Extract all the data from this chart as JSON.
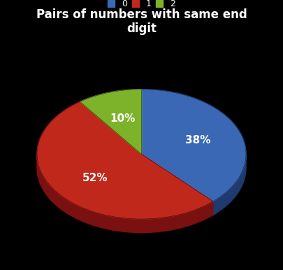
{
  "title": "Pairs of numbers with same end\ndigit",
  "slices": [
    38,
    52,
    10
  ],
  "labels": [
    "38%",
    "52%",
    "10%"
  ],
  "colors": [
    "#3a68b5",
    "#c0281c",
    "#7db32a"
  ],
  "dark_colors": [
    "#1e3a6e",
    "#7a1010",
    "#4a6e10"
  ],
  "legend_labels": [
    "0",
    "1",
    "2"
  ],
  "background_color": "#000000",
  "text_color": "#ffffff",
  "title_fontsize": 12,
  "label_fontsize": 11,
  "legend_fontsize": 9,
  "startangle": 90
}
